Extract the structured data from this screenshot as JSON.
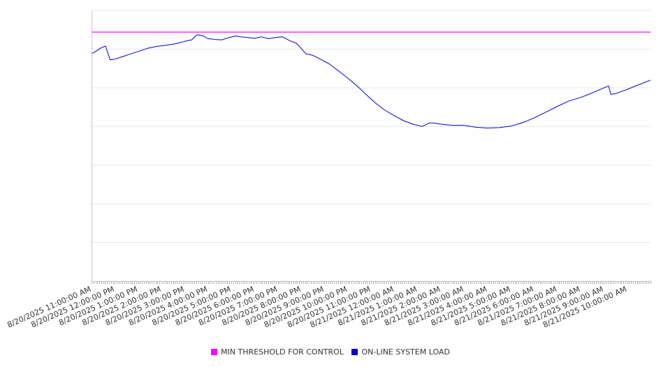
{
  "chart_data": {
    "type": "line",
    "title": "",
    "xlabel": "",
    "ylabel": "",
    "grid": true,
    "legend_position": "bottom",
    "y_axis_labels_visible": false,
    "x_tick_labels": [
      "8/20/2025 11:00:00 AM",
      "8/20/2025 12:00:00 PM",
      "8/20/2025 1:00:00 PM",
      "8/20/2025 2:00:00 PM",
      "8/20/2025 3:00:00 PM",
      "8/20/2025 4:00:00 PM",
      "8/20/2025 5:00:00 PM",
      "8/20/2025 6:00:00 PM",
      "8/20/2025 7:00:00 PM",
      "8/20/2025 8:00:00 PM",
      "8/20/2025 9:00:00 PM",
      "8/20/2025 10:00:00 PM",
      "8/20/2025 11:00:00 PM",
      "8/21/2025 12:00:00 AM",
      "8/21/2025 1:00:00 AM",
      "8/21/2025 2:00:00 AM",
      "8/21/2025 3:00:00 AM",
      "8/21/2025 4:00:00 AM",
      "8/21/2025 5:00:00 AM",
      "8/21/2025 6:00:00 AM",
      "8/21/2025 7:00:00 AM",
      "8/21/2025 8:00:00 AM",
      "8/21/2025 9:00:00 AM",
      "8/21/2025 10:00:00 AM"
    ],
    "x_hours_span": [
      0,
      24
    ],
    "ylim": [
      0,
      7
    ],
    "y_gridlines": [
      0,
      1,
      2,
      3,
      4,
      5,
      6,
      7
    ],
    "series": [
      {
        "name": "MIN THRESHOLD FOR CONTROL",
        "color": "#ff00ff",
        "x": [
          0,
          24
        ],
        "y": [
          6.44,
          6.44
        ]
      },
      {
        "name": "ON-LINE SYSTEM LOAD",
        "color": "#0000cc",
        "x": [
          0,
          0.2,
          0.4,
          0.6,
          0.7,
          0.8,
          1.0,
          1.3,
          1.6,
          2.0,
          2.4,
          2.8,
          3.2,
          3.6,
          4.0,
          4.3,
          4.5,
          4.6,
          4.8,
          5.0,
          5.2,
          5.3,
          5.6,
          5.9,
          6.2,
          6.4,
          6.7,
          7.0,
          7.3,
          7.6,
          7.9,
          8.2,
          8.5,
          8.8,
          9.0,
          9.2,
          9.5,
          9.8,
          10.2,
          10.6,
          11.0,
          11.4,
          11.8,
          12.2,
          12.6,
          13.0,
          13.4,
          13.8,
          14.2,
          14.5,
          14.7,
          15.0,
          15.5,
          16.0,
          16.5,
          17.0,
          17.5,
          18.0,
          18.3,
          18.6,
          19.0,
          19.5,
          20.0,
          20.5,
          21.0,
          21.5,
          22.0,
          22.2,
          22.3,
          22.5,
          23.0,
          23.5,
          24.0
        ],
        "y": [
          5.88,
          5.95,
          6.03,
          6.08,
          5.9,
          5.72,
          5.74,
          5.8,
          5.86,
          5.94,
          6.02,
          6.07,
          6.1,
          6.14,
          6.2,
          6.24,
          6.36,
          6.37,
          6.34,
          6.27,
          6.26,
          6.25,
          6.24,
          6.3,
          6.34,
          6.32,
          6.3,
          6.28,
          6.32,
          6.27,
          6.3,
          6.32,
          6.22,
          6.15,
          6.02,
          5.88,
          5.84,
          5.75,
          5.62,
          5.44,
          5.25,
          5.05,
          4.82,
          4.6,
          4.42,
          4.28,
          4.15,
          4.06,
          4.0,
          4.09,
          4.09,
          4.06,
          4.03,
          4.03,
          3.98,
          3.96,
          3.97,
          4.01,
          4.06,
          4.12,
          4.22,
          4.37,
          4.52,
          4.66,
          4.75,
          4.87,
          5.0,
          5.05,
          4.83,
          4.85,
          4.96,
          5.08,
          5.2
        ]
      }
    ]
  }
}
